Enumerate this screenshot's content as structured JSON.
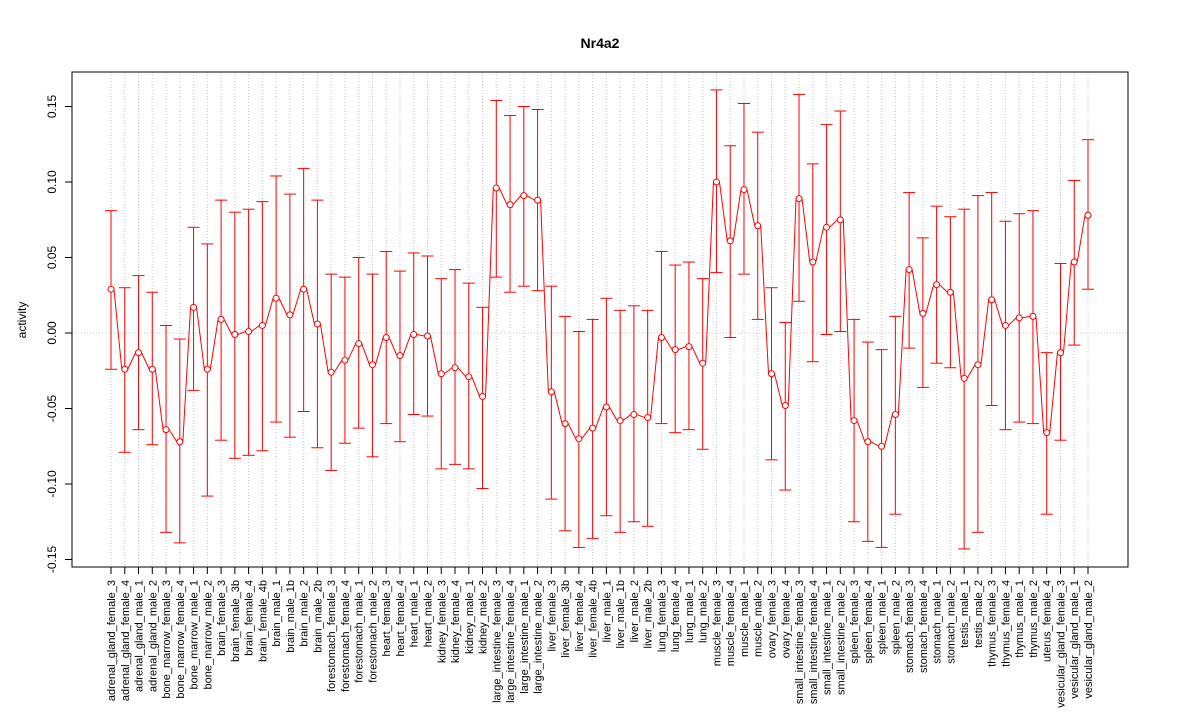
{
  "chart_data": {
    "type": "line",
    "title": "Nr4a2",
    "xlabel": "",
    "ylabel": "activity",
    "ylim": [
      -0.155,
      0.17
    ],
    "yticks": [
      -0.15,
      -0.1,
      -0.05,
      0.0,
      0.05,
      0.1,
      0.15
    ],
    "ytick_labels": [
      "-0.15",
      "-0.10",
      "-0.05",
      "0.00",
      "0.05",
      "0.10",
      "0.15"
    ],
    "grid": "dotted vertical at each category, horizontal at 0",
    "colors": {
      "series": "#ff0000",
      "grid": "#c8c8c8",
      "axis": "#000000"
    },
    "categories": [
      "adrenal_gland_female_3",
      "adrenal_gland_female_4",
      "adrenal_gland_male_1",
      "adrenal_gland_male_2",
      "bone_marrow_female_3",
      "bone_marrow_female_4",
      "bone_marrow_male_1",
      "bone_marrow_male_2",
      "brain_female_3",
      "brain_female_3b",
      "brain_female_4",
      "brain_female_4b",
      "brain_male_1",
      "brain_male_1b",
      "brain_male_2",
      "brain_male_2b",
      "forestomach_female_3",
      "forestomach_female_4",
      "forestomach_male_1",
      "forestomach_male_2",
      "heart_female_3",
      "heart_female_4",
      "heart_male_1",
      "heart_male_2",
      "kidney_female_3",
      "kidney_female_4",
      "kidney_male_1",
      "kidney_male_2",
      "large_intestine_female_3",
      "large_intestine_female_4",
      "large_intestine_male_1",
      "large_intestine_male_2",
      "liver_female_3",
      "liver_female_3b",
      "liver_female_4",
      "liver_female_4b",
      "liver_male_1",
      "liver_male_1b",
      "liver_male_2",
      "liver_male_2b",
      "lung_female_3",
      "lung_female_4",
      "lung_male_1",
      "lung_male_2",
      "muscle_female_3",
      "muscle_female_4",
      "muscle_male_1",
      "muscle_male_2",
      "ovary_female_3",
      "ovary_female_4",
      "small_intestine_female_3",
      "small_intestine_female_4",
      "small_intestine_male_1",
      "small_intestine_male_2",
      "spleen_female_3",
      "spleen_female_4",
      "spleen_male_1",
      "spleen_male_2",
      "stomach_female_3",
      "stomach_female_4",
      "stomach_male_1",
      "stomach_male_2",
      "testis_male_1",
      "testis_male_2",
      "thymus_female_3",
      "thymus_female_4",
      "thymus_male_1",
      "thymus_male_2",
      "uterus_female_4",
      "vesicular_gland_female_3",
      "vesicular_gland_male_1",
      "vesicular_gland_male_2"
    ],
    "series": [
      {
        "name": "activity",
        "values": [
          0.029,
          -0.024,
          -0.013,
          -0.024,
          -0.064,
          -0.072,
          0.017,
          -0.024,
          0.009,
          -0.001,
          0.001,
          0.005,
          0.023,
          0.012,
          0.029,
          0.006,
          -0.026,
          -0.018,
          -0.007,
          -0.021,
          -0.003,
          -0.015,
          -0.001,
          -0.002,
          -0.027,
          -0.023,
          -0.029,
          -0.042,
          0.096,
          0.085,
          0.091,
          0.088,
          -0.039,
          -0.06,
          -0.07,
          -0.063,
          -0.049,
          -0.058,
          -0.054,
          -0.056,
          -0.003,
          -0.011,
          -0.009,
          -0.02,
          0.1,
          0.061,
          0.095,
          0.071,
          -0.027,
          -0.048,
          0.089,
          0.047,
          0.07,
          0.075,
          -0.058,
          -0.072,
          -0.075,
          -0.054,
          0.042,
          0.013,
          0.032,
          0.027,
          -0.03,
          -0.021,
          0.022,
          0.005,
          0.01,
          0.011,
          -0.066,
          -0.013,
          0.047,
          0.078
        ],
        "upper": [
          0.081,
          0.03,
          0.038,
          0.027,
          0.005,
          -0.004,
          0.07,
          0.059,
          0.088,
          0.08,
          0.082,
          0.087,
          0.104,
          0.092,
          0.109,
          0.088,
          0.039,
          0.037,
          0.05,
          0.039,
          0.054,
          0.041,
          0.053,
          0.051,
          0.036,
          0.042,
          0.033,
          0.017,
          0.154,
          0.144,
          0.15,
          0.148,
          0.031,
          0.011,
          0.001,
          0.009,
          0.023,
          0.015,
          0.018,
          0.015,
          0.054,
          0.045,
          0.047,
          0.036,
          0.161,
          0.124,
          0.152,
          0.133,
          0.03,
          0.007,
          0.158,
          0.112,
          0.138,
          0.147,
          0.009,
          -0.006,
          -0.011,
          0.011,
          0.093,
          0.063,
          0.084,
          0.077,
          0.082,
          0.091,
          0.093,
          0.074,
          0.079,
          0.081,
          -0.013,
          0.046,
          0.101,
          0.128
        ],
        "lower": [
          -0.024,
          -0.079,
          -0.064,
          -0.074,
          -0.132,
          -0.139,
          -0.038,
          -0.108,
          -0.071,
          -0.083,
          -0.081,
          -0.078,
          -0.059,
          -0.069,
          -0.052,
          -0.076,
          -0.091,
          -0.073,
          -0.063,
          -0.082,
          -0.06,
          -0.072,
          -0.054,
          -0.055,
          -0.09,
          -0.087,
          -0.09,
          -0.103,
          0.037,
          0.027,
          0.031,
          0.028,
          -0.11,
          -0.131,
          -0.142,
          -0.136,
          -0.121,
          -0.132,
          -0.125,
          -0.128,
          -0.06,
          -0.066,
          -0.064,
          -0.077,
          0.04,
          -0.003,
          0.039,
          0.009,
          -0.084,
          -0.104,
          0.021,
          -0.019,
          -0.001,
          0.001,
          -0.125,
          -0.138,
          -0.142,
          -0.12,
          -0.01,
          -0.036,
          -0.02,
          -0.023,
          -0.143,
          -0.132,
          -0.048,
          -0.064,
          -0.059,
          -0.06,
          -0.12,
          -0.071,
          -0.008,
          0.029
        ]
      }
    ]
  }
}
